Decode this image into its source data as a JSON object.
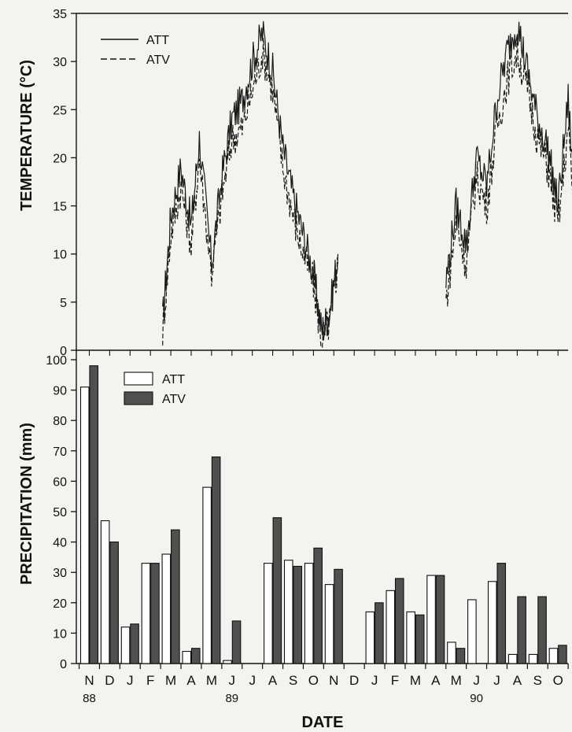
{
  "chart_data": [
    {
      "type": "line",
      "ylabel": "TEMPERATURE (°C)",
      "ylim": [
        0,
        35
      ],
      "yticks": [
        0,
        5,
        10,
        15,
        20,
        25,
        30,
        35
      ],
      "grid": false,
      "legend_placement": "top-left",
      "series": [
        {
          "name": "ATT",
          "style": "solid",
          "x_months_from_nov88": [
            3.6,
            4.0,
            4.5,
            5.0,
            5.4,
            6.0,
            6.5,
            7.0,
            7.5,
            8.0,
            8.5,
            9.0,
            9.5,
            10.0,
            10.5,
            11.0,
            11.4,
            11.8,
            12.2
          ],
          "values": [
            3,
            14,
            19,
            13,
            22,
            9,
            18,
            24,
            26,
            30,
            33,
            29,
            21,
            16,
            12,
            8,
            2,
            4,
            10
          ]
        },
        {
          "name": "ATV",
          "style": "dashed",
          "x_months_from_nov88": [
            3.6,
            4.0,
            4.5,
            5.0,
            5.4,
            6.0,
            6.5,
            7.0,
            7.5,
            8.0,
            8.5,
            9.0,
            9.5,
            10.0,
            10.5,
            11.0,
            11.4,
            11.8,
            12.2
          ],
          "values": [
            2,
            12,
            17,
            11,
            20,
            8,
            16,
            22,
            23,
            27,
            31,
            27,
            19,
            14,
            10,
            7,
            1,
            3,
            9
          ]
        },
        {
          "name": "ATT (1990)",
          "style": "solid",
          "x_months_from_nov88": [
            17.5,
            18.0,
            18.5,
            19.0,
            19.5,
            20.0,
            20.5,
            21.0,
            21.5,
            22.0,
            22.5,
            23.0,
            23.5,
            24.0
          ],
          "values": [
            7,
            15,
            11,
            20,
            17,
            26,
            31,
            34,
            29,
            24,
            21,
            15,
            26,
            10
          ]
        },
        {
          "name": "ATV (1990)",
          "style": "dashed",
          "x_months_from_nov88": [
            17.5,
            18.0,
            18.5,
            19.0,
            19.5,
            20.0,
            20.5,
            21.0,
            21.5,
            22.0,
            22.5,
            23.0,
            23.5,
            24.0
          ],
          "values": [
            5,
            13,
            9,
            18,
            15,
            23,
            28,
            31,
            27,
            22,
            19,
            13,
            23,
            8
          ]
        }
      ],
      "legend": [
        {
          "name": "ATT",
          "style": "solid"
        },
        {
          "name": "ATV",
          "style": "dashed"
        }
      ]
    },
    {
      "type": "bar",
      "ylabel": "PRECIPITATION (mm)",
      "xlabel": "DATE",
      "ylim": [
        0,
        100
      ],
      "yticks": [
        0,
        10,
        20,
        30,
        40,
        50,
        60,
        70,
        80,
        90,
        100
      ],
      "grid": false,
      "legend_placement": "top-left",
      "categories": [
        "N",
        "D",
        "J",
        "F",
        "M",
        "A",
        "M",
        "J",
        "J",
        "A",
        "S",
        "O",
        "N",
        "D",
        "J",
        "F",
        "M",
        "A",
        "M",
        "J",
        "J",
        "A",
        "S",
        "O"
      ],
      "year_labels": [
        {
          "label": "88",
          "at_category_index": 0
        },
        {
          "label": "89",
          "at_category_index": 7
        },
        {
          "label": "90",
          "at_category_index": 19
        }
      ],
      "series": [
        {
          "name": "ATT",
          "color": "#ffffff",
          "values": [
            91,
            47,
            12,
            33,
            36,
            4,
            58,
            1,
            null,
            33,
            34,
            33,
            26,
            null,
            17,
            24,
            17,
            29,
            7,
            21,
            27,
            3,
            3,
            5
          ]
        },
        {
          "name": "ATV",
          "color": "#505050",
          "values": [
            98,
            40,
            13,
            33,
            44,
            5,
            68,
            14,
            null,
            48,
            32,
            38,
            31,
            null,
            20,
            28,
            16,
            29,
            5,
            null,
            33,
            22,
            22,
            6
          ]
        }
      ]
    }
  ]
}
